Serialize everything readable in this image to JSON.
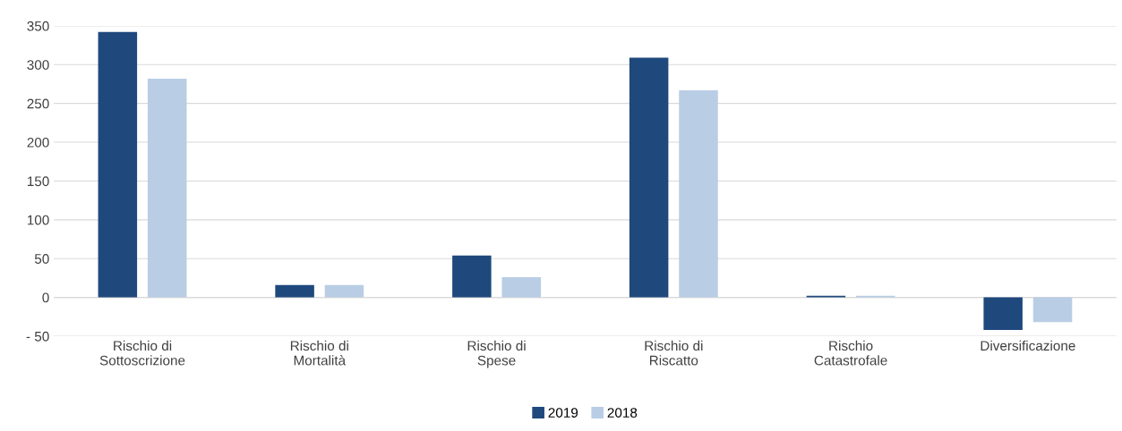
{
  "chart_data": {
    "type": "bar",
    "categories": [
      "Rischio di\nSottoscrizione",
      "Rischio di\nMortalità",
      "Rischio di\nSpese",
      "Rischio di\nRiscatto",
      "Rischio\nCatastrofale",
      "Diversificazione"
    ],
    "series": [
      {
        "name": "2019",
        "color": "#1f497d",
        "values": [
          342,
          16,
          54,
          309,
          2,
          -42
        ]
      },
      {
        "name": "2018",
        "color": "#b9cde5",
        "values": [
          282,
          16,
          26,
          267,
          2,
          -32
        ]
      }
    ],
    "ylim": [
      -50,
      350
    ],
    "yticks": [
      {
        "value": -50,
        "label": "- 50"
      },
      0,
      50,
      100,
      150,
      200,
      250,
      300,
      350
    ],
    "grid": "y",
    "legend": "bottom"
  }
}
